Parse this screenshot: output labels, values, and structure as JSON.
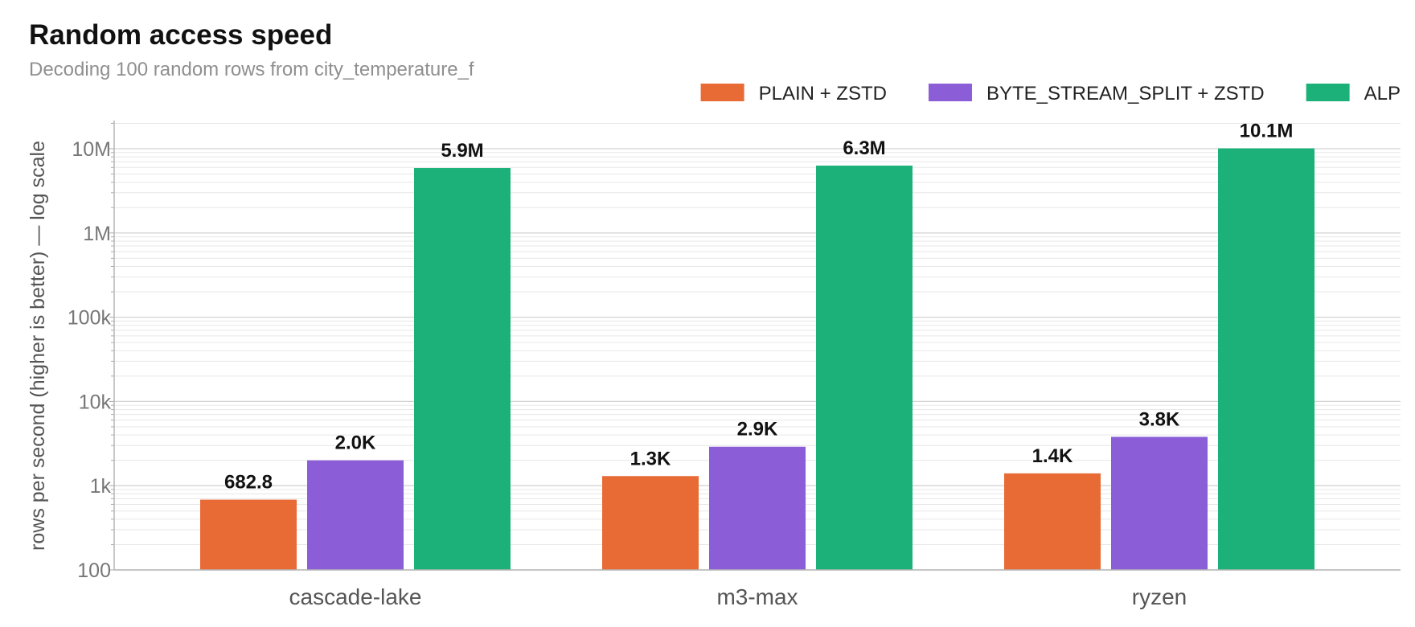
{
  "chart_data": {
    "type": "bar",
    "title": "Random access speed",
    "subtitle": "Decoding 100 random rows from city_temperature_f",
    "xlabel": "",
    "ylabel": "rows per second (higher is better) — log scale",
    "yscale": "log",
    "ylim": [
      100,
      20000000
    ],
    "yticks": [
      {
        "value": 100,
        "label": "100"
      },
      {
        "value": 1000,
        "label": "1k"
      },
      {
        "value": 10000,
        "label": "10k"
      },
      {
        "value": 100000,
        "label": "100k"
      },
      {
        "value": 1000000,
        "label": "1M"
      },
      {
        "value": 10000000,
        "label": "10M"
      }
    ],
    "grid": true,
    "legend_position": "top-right",
    "categories": [
      "cascade-lake",
      "m3-max",
      "ryzen"
    ],
    "series": [
      {
        "name": "PLAIN + ZSTD",
        "color": "#e86a35",
        "values": [
          682.8,
          1300,
          1400
        ],
        "labels": [
          "682.8",
          "1.3K",
          "1.4K"
        ]
      },
      {
        "name": "BYTE_STREAM_SPLIT + ZSTD",
        "color": "#8b5ed8",
        "values": [
          2000,
          2900,
          3800
        ],
        "labels": [
          "2.0K",
          "2.9K",
          "3.8K"
        ]
      },
      {
        "name": "ALP",
        "color": "#1db17a",
        "values": [
          5900000,
          6300000,
          10100000
        ],
        "labels": [
          "5.9M",
          "6.3M",
          "10.1M"
        ]
      }
    ]
  }
}
